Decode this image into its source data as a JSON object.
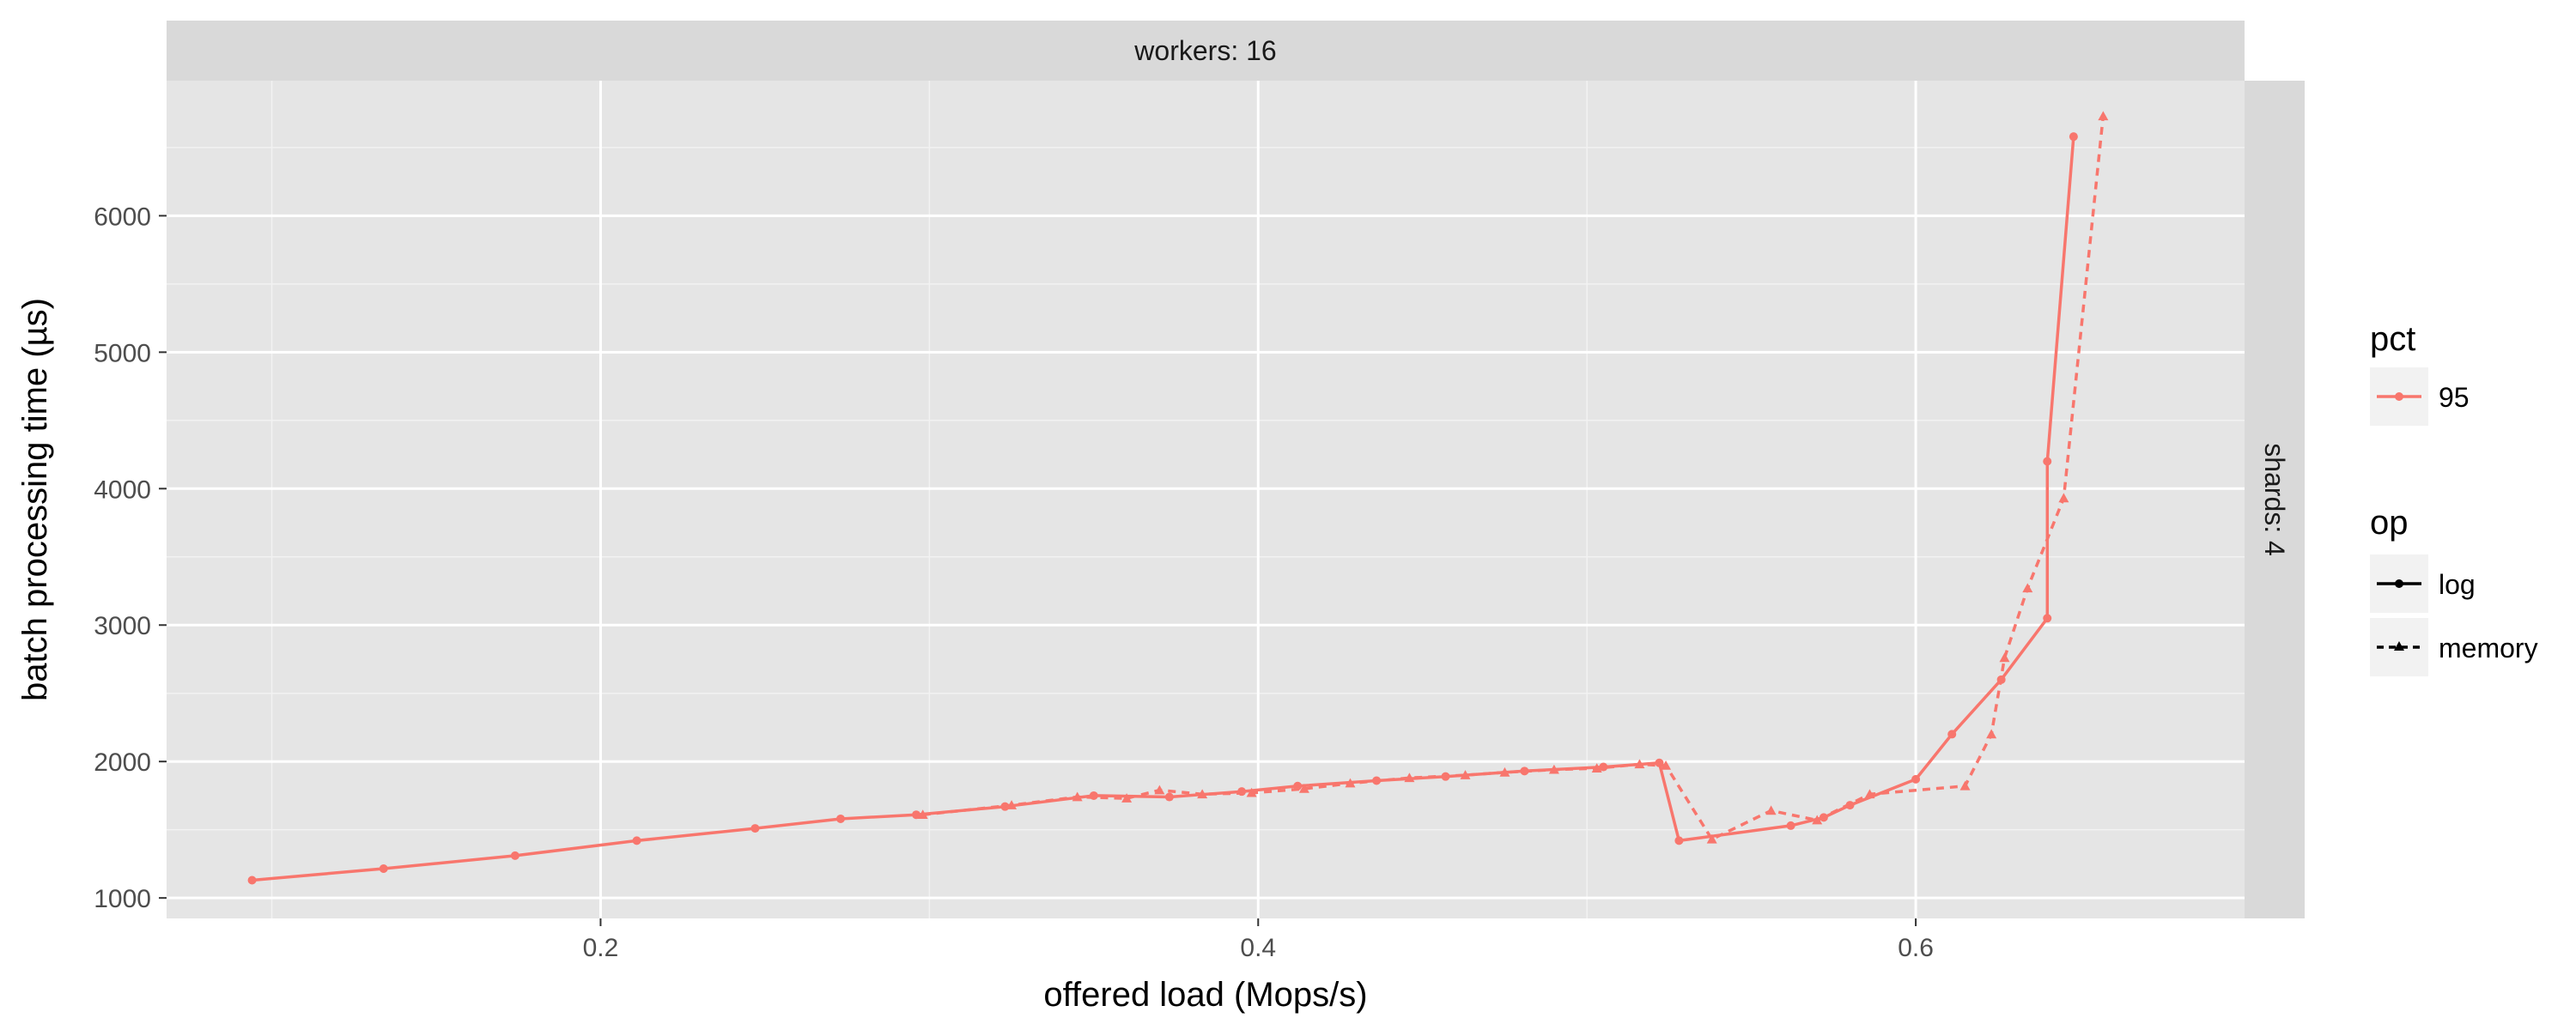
{
  "chart_data": {
    "type": "line",
    "facet": {
      "column_strip": "workers: 16",
      "row_strip": "shards: 4"
    },
    "xlabel": "offered load (Mops/s)",
    "ylabel": "batch processing time (µs)",
    "xticks": [
      0.2,
      0.4,
      0.6
    ],
    "xtick_labels": [
      "0.2",
      "0.4",
      "0.6"
    ],
    "yticks": [
      1000,
      2000,
      3000,
      4000,
      5000,
      6000
    ],
    "ytick_labels": [
      "1000",
      "2000",
      "3000",
      "4000",
      "5000",
      "6000"
    ],
    "xlim": [
      0.068,
      0.7
    ],
    "ylim": [
      850,
      6990
    ],
    "grid": true,
    "legend": {
      "placement": "right",
      "pct_title": "pct",
      "pct_entries": [
        "95"
      ],
      "op_title": "op",
      "op_entries": [
        "log",
        "memory"
      ]
    },
    "series": [
      {
        "name": "log",
        "color": "#f8766d",
        "linestyle": "solid",
        "marker": "circle",
        "x": [
          0.094,
          0.134,
          0.174,
          0.211,
          0.247,
          0.273,
          0.296,
          0.323,
          0.35,
          0.373,
          0.395,
          0.412,
          0.436,
          0.457,
          0.481,
          0.505,
          0.522,
          0.528,
          0.562,
          0.572,
          0.58,
          0.6,
          0.611,
          0.626,
          0.64,
          0.64,
          0.648
        ],
        "y": [
          1130,
          1215,
          1310,
          1420,
          1510,
          1580,
          1610,
          1670,
          1750,
          1740,
          1780,
          1820,
          1860,
          1890,
          1930,
          1960,
          1990,
          1420,
          1530,
          1590,
          1680,
          1870,
          2200,
          2600,
          3050,
          4200,
          6580
        ]
      },
      {
        "name": "memory",
        "color": "#f8766d",
        "linestyle": "dashed",
        "marker": "triangle",
        "x": [
          0.298,
          0.325,
          0.345,
          0.36,
          0.37,
          0.383,
          0.398,
          0.414,
          0.428,
          0.446,
          0.463,
          0.475,
          0.49,
          0.503,
          0.516,
          0.524,
          0.538,
          0.556,
          0.57,
          0.586,
          0.615,
          0.623,
          0.627,
          0.634,
          0.645,
          0.657
        ],
        "y": [
          1610,
          1680,
          1740,
          1730,
          1790,
          1760,
          1770,
          1800,
          1840,
          1880,
          1900,
          1920,
          1940,
          1950,
          1980,
          1970,
          1430,
          1640,
          1570,
          1760,
          1820,
          2200,
          2760,
          3270,
          3930,
          6730
        ]
      }
    ]
  }
}
